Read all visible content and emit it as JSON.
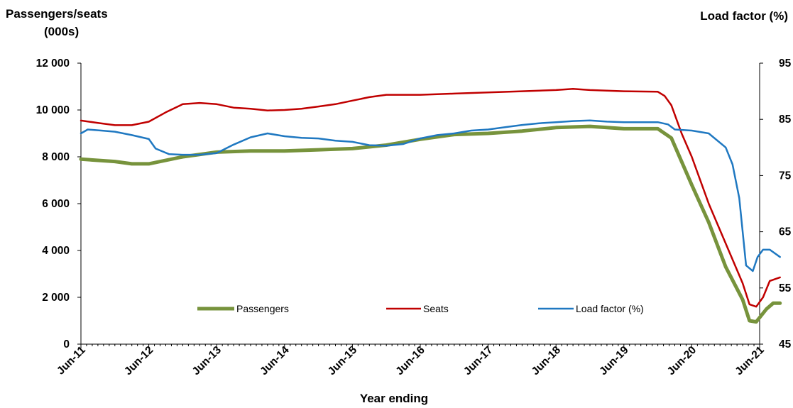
{
  "chart_data": {
    "type": "line",
    "title": "",
    "ylabel_left_line1": "Passengers/seats",
    "ylabel_left_line2": "(000s)",
    "ylabel_right": "Load  factor (%)",
    "xlabel": "Year ending",
    "x_tick_labels": [
      "Jun-11",
      "Jun-12",
      "Jun-13",
      "Jun-14",
      "Jun-15",
      "Jun-16",
      "Jun-17",
      "Jun-18",
      "Jun-19",
      "Jun-20",
      "Jun-21"
    ],
    "y_left": {
      "min": 0,
      "max": 12000,
      "step": 2000,
      "tick_labels": [
        "0",
        "2 000",
        "4 000",
        "6 000",
        "8 000",
        "10 000",
        "12 000"
      ]
    },
    "y_right": {
      "min": 45,
      "max": 95,
      "step": 10,
      "tick_labels": [
        "45",
        "55",
        "65",
        "75",
        "85",
        "95"
      ]
    },
    "grid": false,
    "legend_position": "bottom-inside",
    "series": [
      {
        "name": "Passengers",
        "axis": "left",
        "color": "#77933C",
        "points": [
          [
            0,
            7900
          ],
          [
            0.5,
            7800
          ],
          [
            0.75,
            7700
          ],
          [
            1,
            7700
          ],
          [
            1.5,
            8000
          ],
          [
            2,
            8200
          ],
          [
            2.5,
            8250
          ],
          [
            3,
            8250
          ],
          [
            3.5,
            8300
          ],
          [
            4,
            8350
          ],
          [
            4.5,
            8500
          ],
          [
            5,
            8750
          ],
          [
            5.5,
            8950
          ],
          [
            6,
            9000
          ],
          [
            6.5,
            9100
          ],
          [
            7,
            9250
          ],
          [
            7.5,
            9300
          ],
          [
            8,
            9200
          ],
          [
            8.5,
            9200
          ],
          [
            8.7,
            8800
          ],
          [
            9,
            6800
          ],
          [
            9.25,
            5200
          ],
          [
            9.5,
            3300
          ],
          [
            9.75,
            1900
          ],
          [
            9.85,
            1000
          ],
          [
            9.95,
            950
          ],
          [
            10.1,
            1500
          ],
          [
            10.2,
            1750
          ],
          [
            10.3,
            1750
          ]
        ]
      },
      {
        "name": "Seats",
        "axis": "left",
        "color": "#C00000",
        "points": [
          [
            0,
            9550
          ],
          [
            0.25,
            9450
          ],
          [
            0.5,
            9350
          ],
          [
            0.75,
            9350
          ],
          [
            1,
            9500
          ],
          [
            1.25,
            9900
          ],
          [
            1.5,
            10250
          ],
          [
            1.75,
            10300
          ],
          [
            2,
            10250
          ],
          [
            2.25,
            10100
          ],
          [
            2.5,
            10050
          ],
          [
            2.75,
            9980
          ],
          [
            3,
            10000
          ],
          [
            3.25,
            10050
          ],
          [
            3.5,
            10150
          ],
          [
            3.75,
            10250
          ],
          [
            4,
            10400
          ],
          [
            4.25,
            10550
          ],
          [
            4.5,
            10650
          ],
          [
            5,
            10650
          ],
          [
            5.5,
            10700
          ],
          [
            6,
            10750
          ],
          [
            6.5,
            10800
          ],
          [
            7,
            10850
          ],
          [
            7.25,
            10900
          ],
          [
            7.5,
            10850
          ],
          [
            8,
            10800
          ],
          [
            8.5,
            10780
          ],
          [
            8.6,
            10600
          ],
          [
            8.7,
            10200
          ],
          [
            8.85,
            9000
          ],
          [
            9,
            8000
          ],
          [
            9.25,
            6000
          ],
          [
            9.5,
            4300
          ],
          [
            9.75,
            2600
          ],
          [
            9.85,
            1700
          ],
          [
            9.95,
            1600
          ],
          [
            10.05,
            2000
          ],
          [
            10.15,
            2700
          ],
          [
            10.3,
            2850
          ]
        ]
      },
      {
        "name": "Load factor (%)",
        "axis": "right",
        "color": "#1F78C1",
        "points": [
          [
            0,
            82.5
          ],
          [
            0.1,
            83.2
          ],
          [
            0.3,
            83.0
          ],
          [
            0.5,
            82.8
          ],
          [
            0.75,
            82.2
          ],
          [
            1,
            81.5
          ],
          [
            1.1,
            79.8
          ],
          [
            1.3,
            78.8
          ],
          [
            1.5,
            78.7
          ],
          [
            1.75,
            78.7
          ],
          [
            2,
            79.0
          ],
          [
            2.25,
            80.5
          ],
          [
            2.5,
            81.8
          ],
          [
            2.75,
            82.5
          ],
          [
            3,
            82.0
          ],
          [
            3.25,
            81.7
          ],
          [
            3.5,
            81.6
          ],
          [
            3.75,
            81.2
          ],
          [
            4,
            81.0
          ],
          [
            4.25,
            80.4
          ],
          [
            4.5,
            80.3
          ],
          [
            4.75,
            80.6
          ],
          [
            5,
            81.6
          ],
          [
            5.25,
            82.2
          ],
          [
            5.5,
            82.5
          ],
          [
            5.75,
            83.0
          ],
          [
            6,
            83.2
          ],
          [
            6.25,
            83.6
          ],
          [
            6.5,
            84.0
          ],
          [
            6.75,
            84.3
          ],
          [
            7,
            84.5
          ],
          [
            7.25,
            84.7
          ],
          [
            7.5,
            84.8
          ],
          [
            7.75,
            84.6
          ],
          [
            8,
            84.5
          ],
          [
            8.25,
            84.5
          ],
          [
            8.5,
            84.5
          ],
          [
            8.65,
            84.1
          ],
          [
            8.75,
            83.2
          ],
          [
            9,
            83.0
          ],
          [
            9.25,
            82.5
          ],
          [
            9.5,
            80.0
          ],
          [
            9.6,
            77.0
          ],
          [
            9.7,
            71.0
          ],
          [
            9.75,
            65.0
          ],
          [
            9.8,
            59.0
          ],
          [
            9.9,
            58.0
          ],
          [
            9.97,
            60.5
          ],
          [
            10.05,
            61.8
          ],
          [
            10.15,
            61.8
          ],
          [
            10.3,
            60.5
          ]
        ]
      }
    ]
  }
}
